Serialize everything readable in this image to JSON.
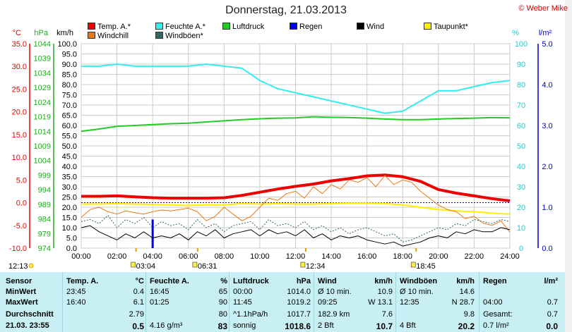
{
  "title": "Donnerstag, 21.03.2013",
  "credit": "© Weber Mike",
  "legend": [
    {
      "label": "Temp. A.*",
      "color": "#ee0000"
    },
    {
      "label": "Feuchte A.*",
      "color": "#33eeee"
    },
    {
      "label": "Luftdruck",
      "color": "#22cc22"
    },
    {
      "label": "Regen",
      "color": "#0000ee"
    },
    {
      "label": "Wind",
      "color": "#000000"
    },
    {
      "label": "Taupunkt*",
      "color": "#ffee00"
    },
    {
      "label": "Windchill",
      "color": "#ee7711"
    },
    {
      "label": "Windböen*",
      "color": "#336666"
    }
  ],
  "axis_units": {
    "temp": "°C",
    "press": "hPa",
    "wind": "km/h",
    "hum": "%",
    "rain": "l/m²"
  },
  "chart_data": {
    "type": "line",
    "x_ticks": [
      "00:00",
      "02:00",
      "04:00",
      "06:00",
      "08:00",
      "10:00",
      "12:00",
      "14:00",
      "16:00",
      "18:00",
      "20:00",
      "22:00",
      "24:00"
    ],
    "xlim": [
      0,
      24
    ],
    "temp_axis": {
      "ylim": [
        -10,
        35
      ],
      "ticks": [
        "35.0",
        "30.0",
        "25.0",
        "20.0",
        "15.0",
        "10.0",
        "5.0",
        "0.0",
        "-5.0",
        "-10.0"
      ]
    },
    "pressure_axis": {
      "ylim": [
        974,
        1044
      ],
      "ticks": [
        "1044",
        "1039",
        "1034",
        "1029",
        "1024",
        "1019",
        "1014",
        "1009",
        "1004",
        "999",
        "994",
        "989",
        "984",
        "979",
        "974"
      ]
    },
    "wind_axis": {
      "ylim": [
        0,
        100
      ],
      "ticks": [
        "100.0",
        "95.0",
        "90.0",
        "85.0",
        "80.0",
        "75.0",
        "70.0",
        "65.0",
        "60.0",
        "55.0",
        "50.0",
        "45.0",
        "40.0",
        "35.0",
        "30.0",
        "25.0",
        "20.0",
        "15.0",
        "10.0",
        "5.0",
        "0.0"
      ]
    },
    "humidity_axis": {
      "ylim": [
        0,
        100
      ],
      "ticks": [
        "100",
        "90",
        "80",
        "70",
        "60",
        "50",
        "40",
        "30",
        "20",
        "10",
        "0"
      ]
    },
    "rain_axis": {
      "ylim": [
        0,
        5
      ],
      "ticks": [
        "5.0",
        "4.0",
        "3.0",
        "2.0",
        "1.0",
        "0.0"
      ]
    },
    "series": [
      {
        "name": "Feuchte A.*",
        "axis": "hum",
        "color": "#33eeee",
        "x": [
          0,
          1,
          2,
          3,
          4,
          5,
          6,
          7,
          8,
          9,
          10,
          11,
          12,
          13,
          14,
          15,
          16,
          17,
          18,
          19,
          20,
          21,
          22,
          23,
          24
        ],
        "y": [
          89,
          89,
          90,
          89,
          89,
          89,
          89,
          90,
          89,
          88,
          82,
          78,
          76,
          74,
          72,
          70,
          68,
          66,
          67,
          72,
          77,
          77,
          79,
          81,
          82
        ]
      },
      {
        "name": "Luftdruck",
        "axis": "press",
        "color": "#22cc22",
        "x": [
          0,
          1,
          2,
          3,
          4,
          5,
          6,
          7,
          8,
          9,
          10,
          11,
          12,
          13,
          14,
          15,
          16,
          17,
          18,
          19,
          20,
          21,
          22,
          23,
          24
        ],
        "y": [
          1014.0,
          1014.8,
          1015.7,
          1016.0,
          1016.3,
          1016.6,
          1016.8,
          1017.2,
          1017.6,
          1018.0,
          1018.3,
          1018.5,
          1018.6,
          1019.0,
          1018.8,
          1018.7,
          1018.5,
          1018.2,
          1018.0,
          1018.0,
          1018.2,
          1018.4,
          1018.5,
          1018.7,
          1018.6
        ]
      },
      {
        "name": "Temp. A.*",
        "axis": "temp",
        "color": "#ee0000",
        "x": [
          0,
          1,
          2,
          3,
          4,
          5,
          6,
          7,
          8,
          9,
          10,
          11,
          12,
          13,
          14,
          15,
          16,
          17,
          18,
          19,
          20,
          21,
          22,
          23,
          24
        ],
        "y": [
          1.4,
          1.4,
          1.5,
          1.3,
          1.1,
          1.0,
          1.0,
          1.0,
          1.1,
          1.6,
          2.3,
          3.0,
          3.6,
          4.1,
          4.8,
          5.3,
          5.9,
          6.1,
          5.7,
          4.7,
          2.9,
          2.1,
          1.5,
          0.9,
          0.4
        ]
      },
      {
        "name": "Taupunkt*",
        "axis": "temp",
        "color": "#ffee00",
        "x": [
          0,
          1,
          2,
          3,
          4,
          5,
          6,
          7,
          8,
          9,
          10,
          11,
          12,
          13,
          14,
          15,
          16,
          17,
          18,
          19,
          20,
          21,
          22,
          23,
          24
        ],
        "y": [
          -0.3,
          -0.3,
          -0.2,
          -0.3,
          -0.4,
          -0.5,
          -0.6,
          -0.5,
          -0.5,
          -0.2,
          -0.3,
          -0.2,
          -0.3,
          -0.3,
          -0.2,
          -0.1,
          -0.1,
          -0.2,
          -0.5,
          -1.0,
          -1.5,
          -1.8,
          -2.0,
          -2.3,
          -2.5
        ]
      },
      {
        "name": "Windchill",
        "axis": "temp",
        "color": "#ee7711",
        "x": [
          0,
          0.5,
          1,
          1.5,
          2,
          2.5,
          3,
          3.5,
          4,
          4.5,
          5,
          5.5,
          6,
          6.5,
          7,
          7.5,
          8,
          8.5,
          9,
          9.5,
          10,
          10.5,
          11,
          11.5,
          12,
          12.5,
          13,
          13.5,
          14,
          14.5,
          15,
          15.5,
          16,
          16.5,
          17,
          17.5,
          18,
          18.5,
          19,
          19.5,
          20,
          20.5,
          21,
          21.5,
          22,
          22.5,
          23,
          23.5,
          24
        ],
        "y": [
          -3.2,
          -1.5,
          -1.0,
          -2.0,
          -2.5,
          -1.8,
          -2.2,
          -2.5,
          -2.0,
          -1.6,
          -1.8,
          -1.5,
          -1.2,
          -2.0,
          -4.0,
          -3.0,
          -1.0,
          -2.5,
          -4.0,
          -3.0,
          -1.0,
          1.0,
          0.5,
          2.0,
          2.5,
          1.0,
          3.5,
          2.0,
          4.0,
          3.0,
          5.0,
          4.5,
          5.5,
          3.5,
          6.0,
          4.0,
          5.0,
          4.5,
          2.5,
          1.0,
          -0.5,
          -1.5,
          -2.0,
          -3.5,
          -3.0,
          -4.5,
          -5.0,
          -4.0,
          -6.5
        ]
      },
      {
        "name": "Windböen*",
        "axis": "wind",
        "color": "#336666",
        "x": [
          0,
          0.5,
          1,
          1.5,
          2,
          2.5,
          3,
          3.5,
          4,
          4.5,
          5,
          5.5,
          6,
          6.5,
          7,
          7.5,
          8,
          8.5,
          9,
          9.5,
          10,
          10.5,
          11,
          11.5,
          12,
          12.5,
          13,
          13.5,
          14,
          14.5,
          15,
          15.5,
          16,
          16.5,
          17,
          17.5,
          18,
          18.5,
          19,
          19.5,
          20,
          20.5,
          21,
          21.5,
          22,
          22.5,
          23,
          23.5,
          24
        ],
        "y": [
          13,
          14,
          12,
          16,
          10,
          14,
          12,
          15,
          10,
          13,
          11,
          12,
          9,
          14,
          10,
          12,
          8,
          11,
          12,
          13,
          9,
          14,
          11,
          12,
          10,
          13,
          9,
          11,
          8,
          10,
          7,
          9,
          10,
          8,
          6,
          7,
          3,
          4,
          6,
          8,
          10,
          9,
          12,
          11,
          14,
          13,
          12,
          14,
          13
        ]
      },
      {
        "name": "Wind",
        "axis": "wind",
        "color": "#000000",
        "x": [
          0,
          0.5,
          1,
          1.5,
          2,
          2.5,
          3,
          3.5,
          4,
          4.5,
          5,
          5.5,
          6,
          6.5,
          7,
          7.5,
          8,
          8.5,
          9,
          9.5,
          10,
          10.5,
          11,
          11.5,
          12,
          12.5,
          13,
          13.5,
          14,
          14.5,
          15,
          15.5,
          16,
          16.5,
          17,
          17.5,
          18,
          18.5,
          19,
          19.5,
          20,
          20.5,
          21,
          21.5,
          22,
          22.5,
          23,
          23.5,
          24
        ],
        "y": [
          10,
          11,
          8,
          6,
          4,
          7,
          5,
          8,
          5,
          6,
          5,
          7,
          4,
          8,
          6,
          9,
          5,
          7,
          8,
          9,
          6,
          9,
          7,
          8,
          6,
          9,
          5,
          7,
          4,
          6,
          5,
          6,
          4,
          3,
          2,
          3,
          1,
          2,
          3,
          5,
          6,
          5,
          8,
          7,
          9,
          8,
          8,
          10,
          9
        ]
      }
    ],
    "rain_events": [
      {
        "x": 4.0,
        "value": 0.7
      }
    ],
    "dashed_reference": {
      "axis": "temp",
      "value": 0.0,
      "color": "#0000ee"
    }
  },
  "under_axis": {
    "left_time": "12:13",
    "markers": [
      {
        "time": "03:04",
        "x": 3.07
      },
      {
        "time": "06:31",
        "x": 6.52
      },
      {
        "time": "12:34",
        "x": 12.57
      },
      {
        "time": "18:45",
        "x": 18.75
      }
    ]
  },
  "table": {
    "columns": [
      {
        "header": "Sensor",
        "unit": "",
        "rows": [
          "MinWert",
          "MaxWert",
          "Durchschnitt",
          "21.03. 23:55"
        ],
        "values": [
          "",
          "",
          "",
          ""
        ]
      },
      {
        "header": "Temp. A.",
        "unit": "°C",
        "rows": [
          "23:45",
          "16:40",
          "",
          ""
        ],
        "values": [
          "0.4",
          "6.1",
          "2.79",
          "0.5"
        ]
      },
      {
        "header": "Feuchte A.",
        "unit": "%",
        "rows": [
          "16:45",
          "01:25",
          "",
          "4.16 g/m³"
        ],
        "values": [
          "65",
          "90",
          "80",
          "83"
        ]
      },
      {
        "header": "Luftdruck",
        "unit": "hPa",
        "rows": [
          "00:00",
          "11:45",
          "^1.1hPa/h",
          "sonnig"
        ],
        "values": [
          "1014.0",
          "1019.2",
          "1017.7",
          "1018.6"
        ]
      },
      {
        "header": "Wind",
        "unit": "km/h",
        "rows": [
          "Ø 10 min.",
          "09:25",
          "182.9 km",
          "2 Bft"
        ],
        "values": [
          "10.9",
          "W 13.1",
          "7.6",
          "10.7"
        ]
      },
      {
        "header": "Windböen",
        "unit": "km/h",
        "rows": [
          "Ø 10 min.",
          "12:35",
          "",
          "4 Bft"
        ],
        "values": [
          "14.6",
          "N 28.7",
          "9.8",
          "20.2"
        ]
      },
      {
        "header": "Regen",
        "unit": "l/m²",
        "rows": [
          "",
          "04:00",
          "Gesamt:",
          "0.7 l/m²"
        ],
        "values": [
          "",
          "0.7",
          "0.7",
          "0.0"
        ]
      }
    ]
  }
}
